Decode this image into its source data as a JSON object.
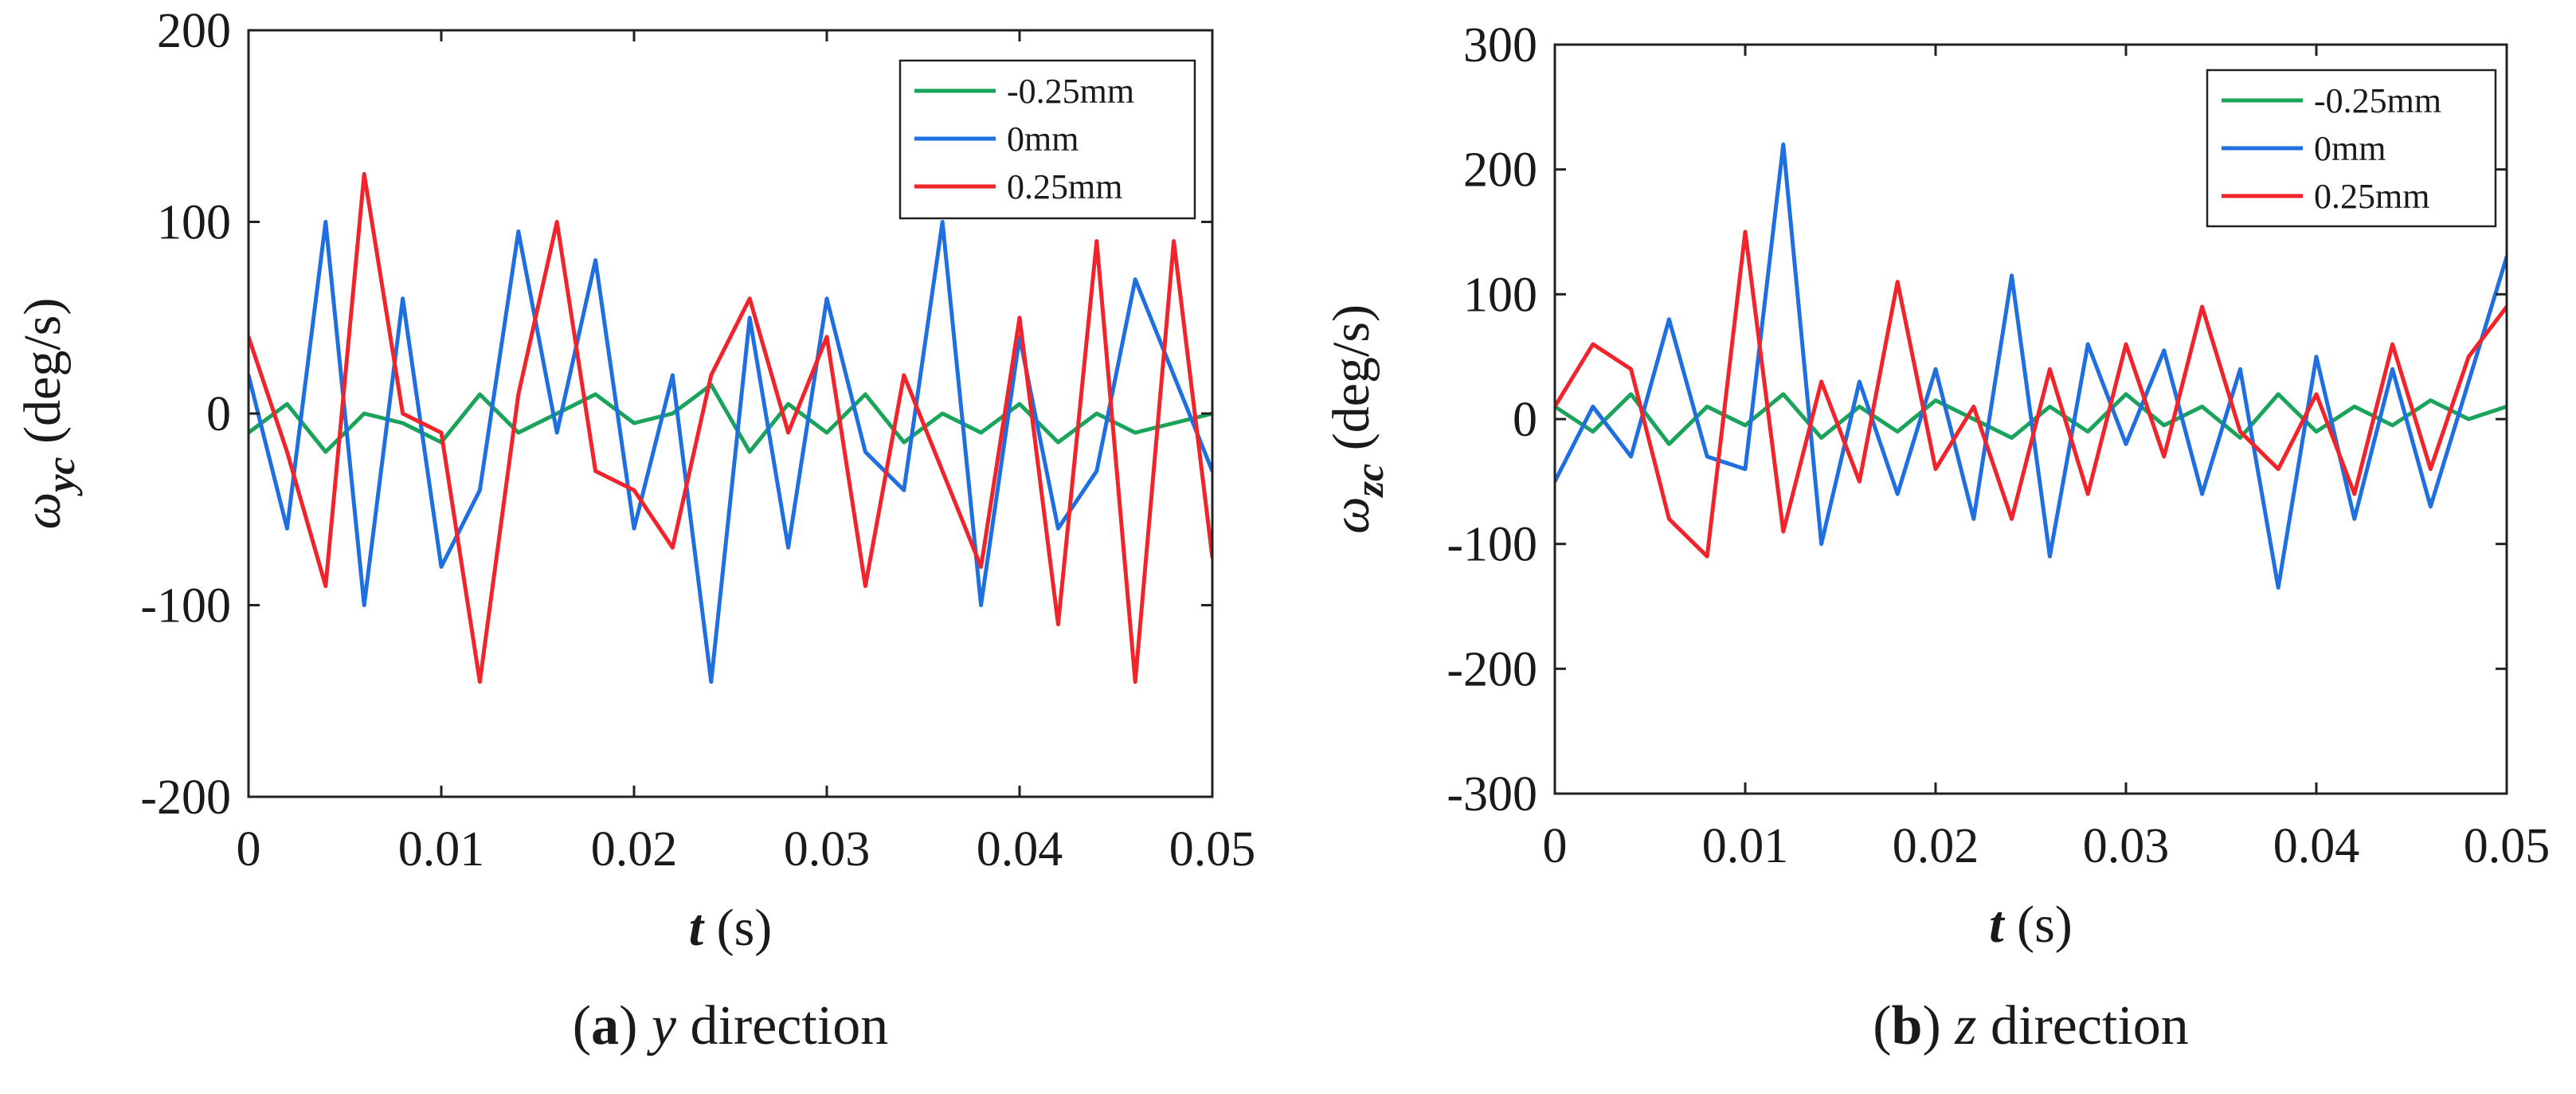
{
  "colors": {
    "green": "#1aa35a",
    "blue": "#1f6fe0",
    "red": "#f0242a",
    "axis": "#222222"
  },
  "chart_data": [
    {
      "type": "line",
      "panel_label": "a",
      "caption_var": "y",
      "caption_text": " direction",
      "ylabel_symbol": "ω",
      "ylabel_sub": "yc",
      "ylabel_unit": "(deg/s)",
      "xlabel_var": "t",
      "xlabel_unit": "(s)",
      "xlim": [
        0,
        0.05
      ],
      "ylim": [
        -200,
        200
      ],
      "xticks": [
        "0",
        "0.01",
        "0.02",
        "0.03",
        "0.04",
        "0.05"
      ],
      "yticks": [
        "-200",
        "-100",
        "0",
        "100",
        "200"
      ],
      "legend_position": "top-right",
      "x": [
        0,
        0.002,
        0.004,
        0.006,
        0.008,
        0.01,
        0.012,
        0.014,
        0.016,
        0.018,
        0.02,
        0.022,
        0.024,
        0.026,
        0.028,
        0.03,
        0.032,
        0.034,
        0.036,
        0.038,
        0.04,
        0.042,
        0.044,
        0.046,
        0.048,
        0.05
      ],
      "series": [
        {
          "name": "-0.25mm",
          "color_key": "green",
          "values": [
            -10,
            5,
            -20,
            0,
            -5,
            -15,
            10,
            -10,
            0,
            10,
            -5,
            0,
            15,
            -20,
            5,
            -10,
            10,
            -15,
            0,
            -10,
            5,
            -15,
            0,
            -10,
            -5,
            0
          ]
        },
        {
          "name": "0mm",
          "color_key": "blue",
          "values": [
            20,
            -60,
            100,
            -100,
            60,
            -80,
            -40,
            95,
            -10,
            80,
            -60,
            20,
            -140,
            50,
            -70,
            60,
            -20,
            -40,
            100,
            -100,
            40,
            -60,
            -30,
            70,
            20,
            -30
          ]
        },
        {
          "name": "0.25mm",
          "color_key": "red",
          "values": [
            40,
            -20,
            -90,
            125,
            0,
            -10,
            -140,
            10,
            100,
            -30,
            -40,
            -70,
            20,
            60,
            -10,
            40,
            -90,
            20,
            -30,
            -80,
            50,
            -110,
            90,
            -140,
            90,
            -75
          ]
        }
      ]
    },
    {
      "type": "line",
      "panel_label": "b",
      "caption_var": "z",
      "caption_text": " direction",
      "ylabel_symbol": "ω",
      "ylabel_sub": "zc",
      "ylabel_unit": "(deg/s)",
      "xlabel_var": "t",
      "xlabel_unit": "(s)",
      "xlim": [
        0,
        0.05
      ],
      "ylim": [
        -300,
        300
      ],
      "xticks": [
        "0",
        "0.01",
        "0.02",
        "0.03",
        "0.04",
        "0.05"
      ],
      "yticks": [
        "-300",
        "-200",
        "-100",
        "0",
        "100",
        "200",
        "300"
      ],
      "legend_position": "top-right",
      "x": [
        0,
        0.002,
        0.004,
        0.006,
        0.008,
        0.01,
        0.012,
        0.014,
        0.016,
        0.018,
        0.02,
        0.022,
        0.024,
        0.026,
        0.028,
        0.03,
        0.032,
        0.034,
        0.036,
        0.038,
        0.04,
        0.042,
        0.044,
        0.046,
        0.048,
        0.05
      ],
      "series": [
        {
          "name": "-0.25mm",
          "color_key": "green",
          "values": [
            10,
            -10,
            20,
            -20,
            10,
            -5,
            20,
            -15,
            10,
            -10,
            15,
            0,
            -15,
            10,
            -10,
            20,
            -5,
            10,
            -15,
            20,
            -10,
            10,
            -5,
            15,
            0,
            10
          ]
        },
        {
          "name": "0mm",
          "color_key": "blue",
          "values": [
            -50,
            10,
            -30,
            80,
            -30,
            -40,
            220,
            -100,
            30,
            -60,
            40,
            -80,
            115,
            -110,
            60,
            -20,
            55,
            -60,
            40,
            -135,
            50,
            -80,
            40,
            -70,
            30,
            130
          ]
        },
        {
          "name": "0.25mm",
          "color_key": "red",
          "values": [
            10,
            60,
            40,
            -80,
            -110,
            150,
            -90,
            30,
            -50,
            110,
            -40,
            10,
            -80,
            40,
            -60,
            60,
            -30,
            90,
            -10,
            -40,
            20,
            -60,
            60,
            -40,
            50,
            90
          ]
        }
      ]
    }
  ]
}
